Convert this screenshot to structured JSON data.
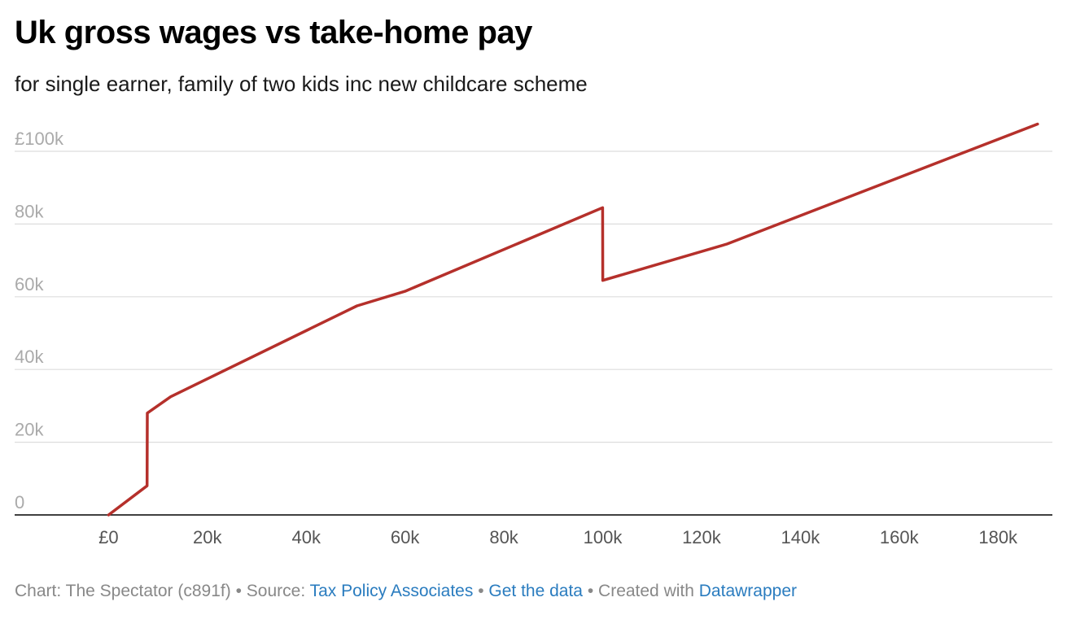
{
  "title": "Uk gross wages vs take-home pay",
  "subtitle": "for single earner, family of two kids inc new childcare scheme",
  "footer": {
    "chart_credit": "Chart: The Spectator (c891f)",
    "sep1": " • ",
    "source_prefix": "Source: ",
    "source_link": "Tax Policy Associates",
    "sep2": " • ",
    "data_link": "Get the data",
    "sep3": " • ",
    "created_prefix": "Created with ",
    "tool_link": "Datawrapper"
  },
  "colors": {
    "line": "#b5302b",
    "grid": "#dddddd",
    "axis": "#000000",
    "y_tick_text": "#aaaaaa",
    "x_tick_text": "#555555",
    "link": "#2a7cbf"
  },
  "chart_data": {
    "type": "line",
    "title": "Uk gross wages vs take-home pay",
    "subtitle": "for single earner, family of two kids inc new childcare scheme",
    "xlabel": "",
    "ylabel": "",
    "xlim": [
      -19000,
      191000
    ],
    "ylim": [
      0,
      100000
    ],
    "grid": true,
    "legend": "none",
    "x_ticks": [
      0,
      20000,
      40000,
      60000,
      80000,
      100000,
      120000,
      140000,
      160000,
      180000
    ],
    "x_tick_labels": [
      "£0",
      "20k",
      "40k",
      "60k",
      "80k",
      "100k",
      "120k",
      "140k",
      "160k",
      "180k"
    ],
    "y_ticks": [
      0,
      20000,
      40000,
      60000,
      80000,
      100000
    ],
    "y_tick_labels": [
      "0",
      "20k",
      "40k",
      "60k",
      "80k",
      "£100k"
    ],
    "series": [
      {
        "x": [
          0,
          7800,
          7850,
          12570,
          50270,
          60000,
          99990,
          100010,
          125140,
          188000
        ],
        "y": [
          0,
          8000,
          28000,
          32500,
          57500,
          61500,
          84500,
          64500,
          74500,
          107500
        ]
      }
    ]
  }
}
